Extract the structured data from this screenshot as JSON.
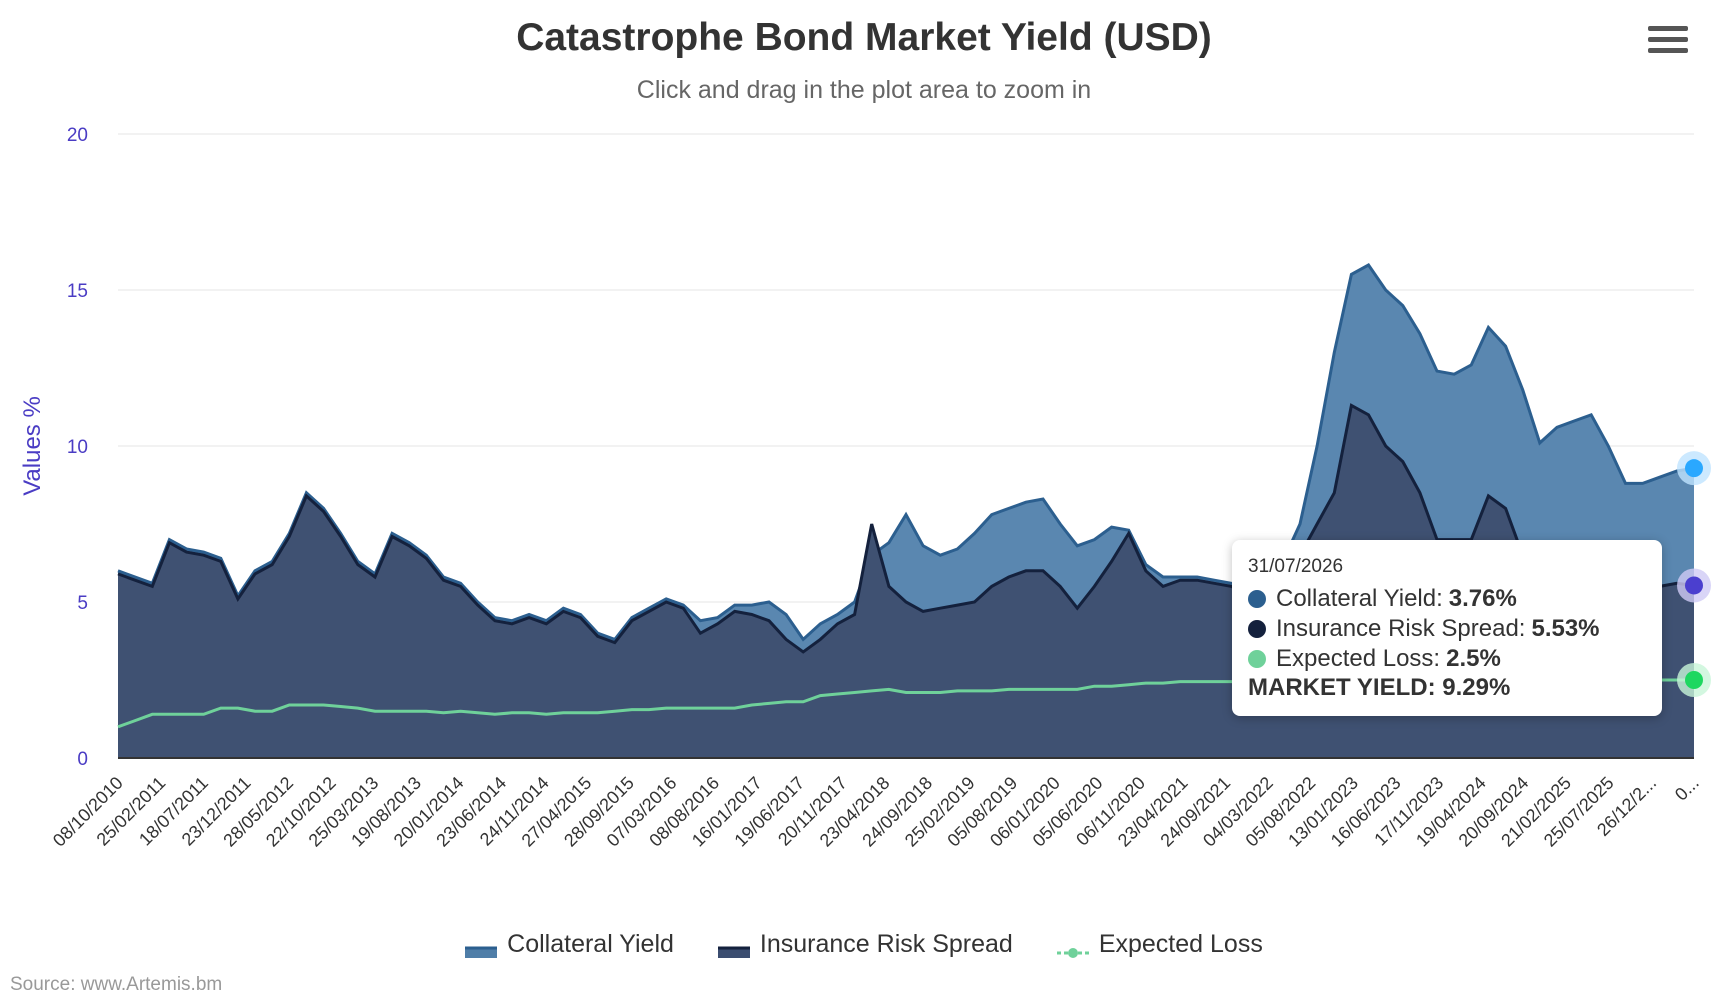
{
  "header": {
    "title": "Catastrophe Bond Market Yield (USD)",
    "subtitle": "Click and drag in the plot area to zoom in"
  },
  "source": "Source: www.Artemis.bm",
  "colors": {
    "collateral_yield": "#4f7ea8",
    "insurance_risk_spread": "#3b4d70",
    "expected_loss": "#6fd19a",
    "axis_label": "#4a3cc4",
    "grid": "#e6e6e6"
  },
  "chart_data": {
    "type": "area",
    "title": "Catastrophe Bond Market Yield (USD)",
    "subtitle": "Click and drag in the plot area to zoom in",
    "ylabel": "Values %",
    "xlabel": "",
    "ylim": [
      0,
      20
    ],
    "yticks": [
      "0",
      "5",
      "10",
      "15",
      "20"
    ],
    "grid": true,
    "legend_position": "bottom",
    "xticks": [
      "08/10/2010",
      "25/02/2011",
      "18/07/2011",
      "23/12/2011",
      "28/05/2012",
      "22/10/2012",
      "25/03/2013",
      "19/08/2013",
      "20/01/2014",
      "23/06/2014",
      "24/11/2014",
      "27/04/2015",
      "28/09/2015",
      "07/03/2016",
      "08/08/2016",
      "16/01/2017",
      "19/06/2017",
      "20/11/2017",
      "23/04/2018",
      "24/09/2018",
      "25/02/2019",
      "05/08/2019",
      "06/01/2020",
      "05/06/2020",
      "06/11/2020",
      "23/04/2021",
      "24/09/2021",
      "04/03/2022",
      "05/08/2022",
      "13/01/2023",
      "16/06/2023",
      "17/11/2023",
      "19/04/2024",
      "20/09/2024",
      "21/02/2025",
      "25/07/2025",
      "26/12/2...",
      "0..."
    ],
    "series": [
      {
        "name": "Collateral Yield",
        "color": "#4f7ea8",
        "values": [
          6.0,
          5.8,
          5.6,
          7.0,
          6.7,
          6.6,
          6.4,
          5.2,
          6.0,
          6.3,
          7.2,
          8.5,
          8.0,
          7.2,
          6.3,
          5.9,
          7.2,
          6.9,
          6.5,
          5.8,
          5.6,
          5.0,
          4.5,
          4.4,
          4.6,
          4.4,
          4.8,
          4.6,
          4.0,
          3.8,
          4.5,
          4.8,
          5.1,
          4.9,
          4.4,
          4.5,
          4.9,
          4.9,
          5.0,
          4.6,
          3.8,
          4.3,
          4.6,
          5.0,
          6.5,
          6.9,
          7.8,
          6.8,
          6.5,
          6.7,
          7.2,
          7.8,
          8.0,
          8.2,
          8.3,
          7.5,
          6.8,
          7.0,
          7.4,
          7.3,
          6.2,
          5.8,
          5.8,
          5.8,
          5.7,
          5.6,
          5.5,
          5.9,
          6.3,
          7.5,
          10.0,
          13.0,
          15.5,
          15.8,
          15.0,
          14.5,
          13.6,
          12.4,
          12.3,
          12.6,
          13.8,
          13.2,
          11.8,
          10.1,
          10.6,
          10.8,
          11.0,
          10.0,
          8.8,
          8.8,
          9.0,
          9.2,
          9.29
        ]
      },
      {
        "name": "Insurance Risk Spread",
        "color": "#3b4d70",
        "values": [
          5.9,
          5.7,
          5.5,
          6.9,
          6.6,
          6.5,
          6.3,
          5.1,
          5.9,
          6.2,
          7.1,
          8.4,
          7.9,
          7.1,
          6.2,
          5.8,
          7.1,
          6.8,
          6.4,
          5.7,
          5.5,
          4.9,
          4.4,
          4.3,
          4.5,
          4.3,
          4.7,
          4.5,
          3.9,
          3.7,
          4.4,
          4.7,
          5.0,
          4.8,
          4.0,
          4.3,
          4.7,
          4.6,
          4.4,
          3.8,
          3.4,
          3.8,
          4.3,
          4.6,
          7.5,
          5.5,
          5.0,
          4.7,
          4.8,
          4.9,
          5.0,
          5.5,
          5.8,
          6.0,
          6.0,
          5.5,
          4.8,
          5.5,
          6.3,
          7.2,
          6.0,
          5.5,
          5.7,
          5.7,
          5.6,
          5.5,
          5.2,
          5.0,
          5.2,
          6.5,
          7.5,
          8.5,
          11.3,
          11.0,
          10.0,
          9.5,
          8.5,
          7.0,
          7.0,
          7.0,
          8.4,
          8.0,
          6.5,
          5.2,
          5.3,
          5.4,
          5.5,
          5.5,
          5.4,
          5.4,
          5.5,
          5.6,
          5.53
        ]
      },
      {
        "name": "Expected Loss",
        "color": "#6fd19a",
        "values": [
          1.0,
          1.2,
          1.4,
          1.4,
          1.4,
          1.4,
          1.6,
          1.6,
          1.5,
          1.5,
          1.7,
          1.7,
          1.7,
          1.65,
          1.6,
          1.5,
          1.5,
          1.5,
          1.5,
          1.45,
          1.5,
          1.45,
          1.4,
          1.45,
          1.45,
          1.4,
          1.45,
          1.45,
          1.45,
          1.5,
          1.55,
          1.55,
          1.6,
          1.6,
          1.6,
          1.6,
          1.6,
          1.7,
          1.75,
          1.8,
          1.8,
          2.0,
          2.05,
          2.1,
          2.15,
          2.2,
          2.1,
          2.1,
          2.1,
          2.15,
          2.15,
          2.15,
          2.2,
          2.2,
          2.2,
          2.2,
          2.2,
          2.3,
          2.3,
          2.35,
          2.4,
          2.4,
          2.45,
          2.45,
          2.45,
          2.45,
          2.4,
          2.45,
          2.45,
          2.5,
          2.5,
          2.5,
          2.5,
          2.5,
          2.5,
          2.5,
          2.5,
          2.5,
          2.5,
          2.5,
          2.5,
          2.5,
          2.5,
          2.5,
          2.5,
          2.5,
          2.5,
          2.5,
          2.5,
          2.5,
          2.5,
          2.5,
          2.5
        ]
      }
    ],
    "tooltip": {
      "date": "31/07/2026",
      "rows": [
        {
          "label": "Collateral Yield:",
          "value": "3.76%",
          "color": "#2c5f8f"
        },
        {
          "label": "Insurance Risk Spread:",
          "value": "5.53%",
          "color": "#14213d"
        },
        {
          "label": "Expected Loss:",
          "value": "2.5%",
          "color": "#6fd19a"
        }
      ],
      "total": "MARKET YIELD: 9.29%"
    }
  },
  "legend": [
    {
      "label": "Collateral Yield",
      "icon": "area-swatch",
      "color": "#4f7ea8"
    },
    {
      "label": "Insurance Risk Spread",
      "icon": "area-swatch",
      "color": "#1e2d4f"
    },
    {
      "label": "Expected Loss",
      "icon": "line-dot",
      "color": "#6fd19a"
    }
  ],
  "menu": {
    "icon": "hamburger-menu-icon"
  }
}
